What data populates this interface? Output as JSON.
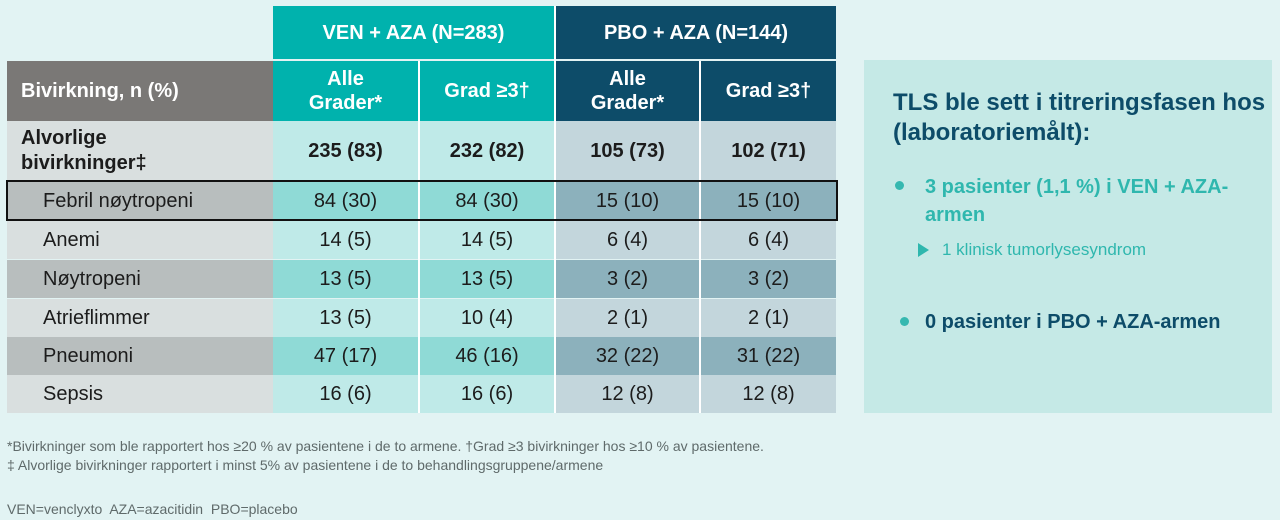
{
  "table": {
    "group_headers": [
      "VEN + AZA (N=283)",
      "PBO + AZA (N=144)"
    ],
    "corner_label": "Bivirkning, n (%)",
    "sub_headers": [
      "Alle Grader*",
      "Grad ≥3†",
      "Alle Grader*",
      "Grad ≥3†"
    ],
    "summary_row": {
      "label": "Alvorlige bivirkninger‡",
      "values": [
        "235 (83)",
        "232 (82)",
        "105 (73)",
        "102 (71)"
      ]
    },
    "rows": [
      {
        "label": "Febril nøytropeni",
        "values": [
          "84 (30)",
          "84 (30)",
          "15 (10)",
          "15 (10)"
        ]
      },
      {
        "label": "Anemi",
        "values": [
          "14 (5)",
          "14 (5)",
          "6 (4)",
          "6 (4)"
        ]
      },
      {
        "label": "Nøytropeni",
        "values": [
          "13 (5)",
          "13 (5)",
          "3 (2)",
          "3 (2)"
        ]
      },
      {
        "label": "Atrieflimmer",
        "values": [
          "13 (5)",
          "10 (4)",
          "2 (1)",
          "2 (1)"
        ]
      },
      {
        "label": "Pneumoni",
        "values": [
          "47 (17)",
          "46 (16)",
          "32 (22)",
          "31 (22)"
        ]
      },
      {
        "label": "Sepsis",
        "values": [
          "16 (6)",
          "16 (6)",
          "12 (8)",
          "12 (8)"
        ]
      }
    ]
  },
  "panel": {
    "title": "TLS ble sett i titreringsfasen hos (laboratoriemålt):",
    "bullet1": "3 pasienter (1,1 %) i VEN + AZA-armen",
    "sub_bullet": "1 klinisk tumorlysesyndrom",
    "bullet2": "0 pasienter i PBO + AZA-armen"
  },
  "footnotes": {
    "line1": "*Bivirkninger som ble rapportert hos ≥20 % av pasientene i de to armene. †Grad ≥3 bivirkninger hos ≥10 % av pasientene.",
    "line2": "‡ Alvorlige bivirkninger rapportert i minst 5% av pasientene i de to behandlingsgruppene/armene",
    "abbreviations": "VEN=venclyxto  AZA=azacitidin  PBO=placebo"
  },
  "colors": {
    "ven_header": "#00b2ad",
    "pbo_header": "#0d4c69",
    "label_header": "#7a7876"
  }
}
